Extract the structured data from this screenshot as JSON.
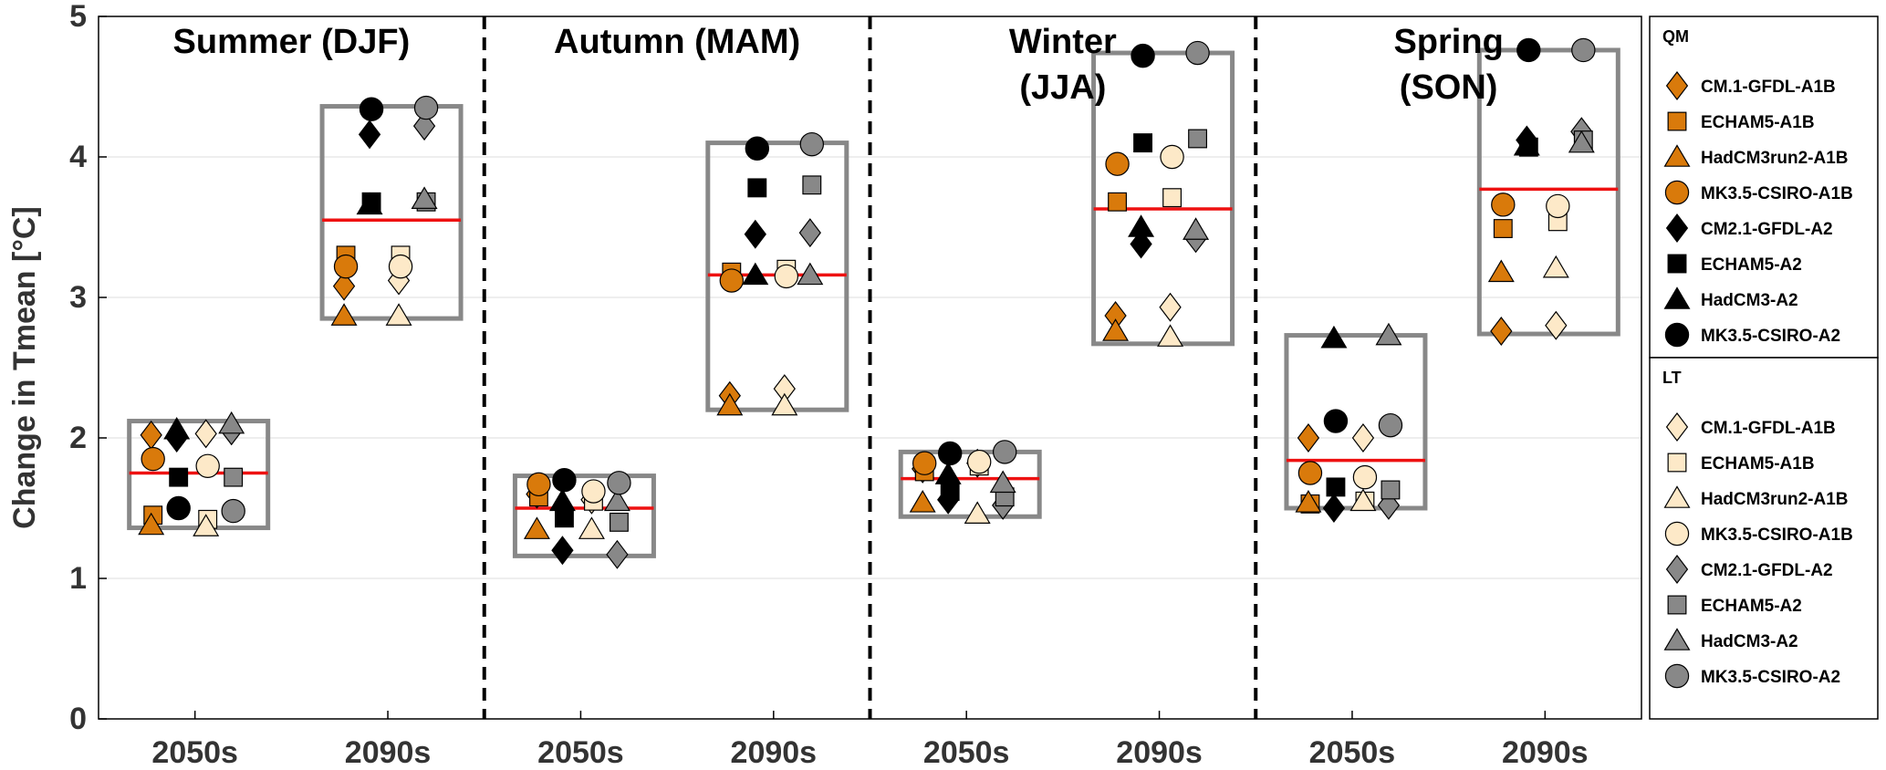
{
  "chart_data": {
    "type": "scatter",
    "ylabel": "Change in Tmean [°C]",
    "ylim": [
      0,
      5
    ],
    "yticks": [
      "0",
      "1",
      "2",
      "3",
      "4",
      "5"
    ],
    "grid": true,
    "legend_placement": "right",
    "seasons": [
      {
        "label_lines": [
          "Summer (DJF)"
        ]
      },
      {
        "label_lines": [
          "Autumn (MAM)"
        ]
      },
      {
        "label_lines": [
          "Winter",
          "(JJA)"
        ]
      },
      {
        "label_lines": [
          "Spring",
          "(SON)"
        ]
      }
    ],
    "periods": [
      "2050s",
      "2090s"
    ],
    "legend_groups": [
      {
        "title": "QM",
        "method": "QM",
        "entries": [
          {
            "label": "CM.1-GFDL-A1B",
            "key": "CM.1-GFDL-A1B"
          },
          {
            "label": "ECHAM5-A1B",
            "key": "ECHAM5-A1B"
          },
          {
            "label": "HadCM3run2-A1B",
            "key": "HadCM3run2-A1B"
          },
          {
            "label": "MK3.5-CSIRO-A1B",
            "key": "MK3.5-CSIRO-A1B"
          },
          {
            "label": "CM2.1-GFDL-A2",
            "key": "CM2.1-GFDL-A2"
          },
          {
            "label": "ECHAM5-A2",
            "key": "ECHAM5-A2"
          },
          {
            "label": "HadCM3-A2",
            "key": "HadCM3-A2"
          },
          {
            "label": "MK3.5-CSIRO-A2",
            "key": "MK3.5-CSIRO-A2"
          }
        ]
      },
      {
        "title": "LT",
        "method": "LT",
        "entries": [
          {
            "label": "CM.1-GFDL-A1B",
            "key": "CM.1-GFDL-A1B"
          },
          {
            "label": "ECHAM5-A1B",
            "key": "ECHAM5-A1B"
          },
          {
            "label": "HadCM3run2-A1B",
            "key": "HadCM3run2-A1B"
          },
          {
            "label": "MK3.5-CSIRO-A1B",
            "key": "MK3.5-CSIRO-A1B"
          },
          {
            "label": "CM2.1-GFDL-A2",
            "key": "CM2.1-GFDL-A2"
          },
          {
            "label": "ECHAM5-A2",
            "key": "ECHAM5-A2"
          },
          {
            "label": "HadCM3-A2",
            "key": "HadCM3-A2"
          },
          {
            "label": "MK3.5-CSIRO-A2",
            "key": "MK3.5-CSIRO-A2"
          }
        ]
      }
    ],
    "model_styles": {
      "CM.1-GFDL-A1B": {
        "marker": "diamond",
        "scenario": "A1B"
      },
      "ECHAM5-A1B": {
        "marker": "square",
        "scenario": "A1B"
      },
      "HadCM3run2-A1B": {
        "marker": "triangle",
        "scenario": "A1B"
      },
      "MK3.5-CSIRO-A1B": {
        "marker": "circle",
        "scenario": "A1B"
      },
      "CM2.1-GFDL-A2": {
        "marker": "diamond",
        "scenario": "A2"
      },
      "ECHAM5-A2": {
        "marker": "square",
        "scenario": "A2"
      },
      "HadCM3-A2": {
        "marker": "triangle",
        "scenario": "A2"
      },
      "MK3.5-CSIRO-A2": {
        "marker": "circle",
        "scenario": "A2"
      }
    },
    "colors": {
      "QM-A1B": "#d97a0b",
      "QM-A2": "#000000",
      "LT-A1B": "#fde9c8",
      "LT-A2": "#888888",
      "range_box": "#888888",
      "mean_line": "#ee1111",
      "grid": "#dddddd"
    },
    "groups": [
      {
        "season": "Summer (DJF)",
        "period": "2050s",
        "box": [
          1.36,
          2.12
        ],
        "mean": 1.75,
        "values": {
          "QM": {
            "CM.1-GFDL-A1B": 2.02,
            "ECHAM5-A1B": 1.45,
            "HadCM3run2-A1B": 1.38,
            "MK3.5-CSIRO-A1B": 1.85,
            "CM2.1-GFDL-A2": 2.0,
            "ECHAM5-A2": 1.72,
            "HadCM3-A2": 2.06,
            "MK3.5-CSIRO-A2": 1.5
          },
          "LT": {
            "CM.1-GFDL-A1B": 2.03,
            "ECHAM5-A1B": 1.42,
            "HadCM3run2-A1B": 1.37,
            "MK3.5-CSIRO-A1B": 1.8,
            "CM2.1-GFDL-A2": 2.05,
            "ECHAM5-A2": 1.72,
            "HadCM3-A2": 2.1,
            "MK3.5-CSIRO-A2": 1.48
          }
        }
      },
      {
        "season": "Summer (DJF)",
        "period": "2090s",
        "box": [
          2.85,
          4.36
        ],
        "mean": 3.55,
        "values": {
          "QM": {
            "CM.1-GFDL-A1B": 3.08,
            "ECHAM5-A1B": 3.3,
            "HadCM3run2-A1B": 2.87,
            "MK3.5-CSIRO-A1B": 3.22,
            "CM2.1-GFDL-A2": 4.16,
            "ECHAM5-A2": 3.68,
            "HadCM3-A2": 3.66,
            "MK3.5-CSIRO-A2": 4.34
          },
          "LT": {
            "CM.1-GFDL-A1B": 3.12,
            "ECHAM5-A1B": 3.3,
            "HadCM3run2-A1B": 2.87,
            "MK3.5-CSIRO-A1B": 3.22,
            "CM2.1-GFDL-A2": 4.22,
            "ECHAM5-A2": 3.68,
            "HadCM3-A2": 3.7,
            "MK3.5-CSIRO-A2": 4.35
          }
        }
      },
      {
        "season": "Autumn (MAM)",
        "period": "2050s",
        "box": [
          1.16,
          1.73
        ],
        "mean": 1.5,
        "values": {
          "QM": {
            "CM.1-GFDL-A1B": 1.6,
            "ECHAM5-A1B": 1.58,
            "HadCM3run2-A1B": 1.35,
            "MK3.5-CSIRO-A1B": 1.67,
            "CM2.1-GFDL-A2": 1.2,
            "ECHAM5-A2": 1.43,
            "HadCM3-A2": 1.55,
            "MK3.5-CSIRO-A2": 1.7
          },
          "LT": {
            "CM.1-GFDL-A1B": 1.56,
            "ECHAM5-A1B": 1.55,
            "HadCM3run2-A1B": 1.35,
            "MK3.5-CSIRO-A1B": 1.62,
            "CM2.1-GFDL-A2": 1.17,
            "ECHAM5-A2": 1.4,
            "HadCM3-A2": 1.55,
            "MK3.5-CSIRO-A2": 1.68
          }
        }
      },
      {
        "season": "Autumn (MAM)",
        "period": "2090s",
        "box": [
          2.2,
          4.1
        ],
        "mean": 3.16,
        "values": {
          "QM": {
            "CM.1-GFDL-A1B": 2.3,
            "ECHAM5-A1B": 3.18,
            "HadCM3run2-A1B": 2.23,
            "MK3.5-CSIRO-A1B": 3.12,
            "CM2.1-GFDL-A2": 3.45,
            "ECHAM5-A2": 3.78,
            "HadCM3-A2": 3.16,
            "MK3.5-CSIRO-A2": 4.06
          },
          "LT": {
            "CM.1-GFDL-A1B": 2.35,
            "ECHAM5-A1B": 3.2,
            "HadCM3run2-A1B": 2.23,
            "MK3.5-CSIRO-A1B": 3.15,
            "CM2.1-GFDL-A2": 3.46,
            "ECHAM5-A2": 3.8,
            "HadCM3-A2": 3.16,
            "MK3.5-CSIRO-A2": 4.09
          }
        }
      },
      {
        "season": "Winter (JJA)",
        "period": "2050s",
        "box": [
          1.44,
          1.9
        ],
        "mean": 1.71,
        "values": {
          "QM": {
            "CM.1-GFDL-A1B": 1.78,
            "ECHAM5-A1B": 1.76,
            "HadCM3run2-A1B": 1.54,
            "MK3.5-CSIRO-A1B": 1.82,
            "CM2.1-GFDL-A2": 1.56,
            "ECHAM5-A2": 1.62,
            "HadCM3-A2": 1.74,
            "MK3.5-CSIRO-A2": 1.89
          },
          "LT": {
            "CM.1-GFDL-A1B": 1.82,
            "ECHAM5-A1B": 1.8,
            "HadCM3run2-A1B": 1.46,
            "MK3.5-CSIRO-A1B": 1.83,
            "CM2.1-GFDL-A2": 1.52,
            "ECHAM5-A2": 1.58,
            "HadCM3-A2": 1.68,
            "MK3.5-CSIRO-A2": 1.9
          }
        }
      },
      {
        "season": "Winter (JJA)",
        "period": "2090s",
        "box": [
          2.67,
          4.74
        ],
        "mean": 3.63,
        "values": {
          "QM": {
            "CM.1-GFDL-A1B": 2.87,
            "ECHAM5-A1B": 3.68,
            "HadCM3run2-A1B": 2.76,
            "MK3.5-CSIRO-A1B": 3.95,
            "CM2.1-GFDL-A2": 3.38,
            "ECHAM5-A2": 4.1,
            "HadCM3-A2": 3.5,
            "MK3.5-CSIRO-A2": 4.72
          },
          "LT": {
            "CM.1-GFDL-A1B": 2.93,
            "ECHAM5-A1B": 3.71,
            "HadCM3run2-A1B": 2.72,
            "MK3.5-CSIRO-A1B": 4.0,
            "CM2.1-GFDL-A2": 3.42,
            "ECHAM5-A2": 4.13,
            "HadCM3-A2": 3.48,
            "MK3.5-CSIRO-A2": 4.74
          }
        }
      },
      {
        "season": "Spring (SON)",
        "period": "2050s",
        "box": [
          1.5,
          2.73
        ],
        "mean": 1.84,
        "values": {
          "QM": {
            "CM.1-GFDL-A1B": 2.0,
            "ECHAM5-A1B": 1.53,
            "HadCM3run2-A1B": 1.54,
            "MK3.5-CSIRO-A1B": 1.75,
            "CM2.1-GFDL-A2": 1.5,
            "ECHAM5-A2": 1.65,
            "HadCM3-A2": 2.71,
            "MK3.5-CSIRO-A2": 2.12
          },
          "LT": {
            "CM.1-GFDL-A1B": 2.0,
            "ECHAM5-A1B": 1.55,
            "HadCM3run2-A1B": 1.55,
            "MK3.5-CSIRO-A1B": 1.72,
            "CM2.1-GFDL-A2": 1.52,
            "ECHAM5-A2": 1.63,
            "HadCM3-A2": 2.73,
            "MK3.5-CSIRO-A2": 2.09
          }
        }
      },
      {
        "season": "Spring (SON)",
        "period": "2090s",
        "box": [
          2.74,
          4.76
        ],
        "mean": 3.77,
        "values": {
          "QM": {
            "CM.1-GFDL-A1B": 2.76,
            "ECHAM5-A1B": 3.49,
            "HadCM3run2-A1B": 3.18,
            "MK3.5-CSIRO-A1B": 3.66,
            "CM2.1-GFDL-A2": 4.12,
            "ECHAM5-A2": 4.07,
            "HadCM3-A2": 4.08,
            "MK3.5-CSIRO-A2": 4.76
          },
          "LT": {
            "CM.1-GFDL-A1B": 2.8,
            "ECHAM5-A1B": 3.54,
            "HadCM3run2-A1B": 3.21,
            "MK3.5-CSIRO-A1B": 3.65,
            "CM2.1-GFDL-A2": 4.18,
            "ECHAM5-A2": 4.12,
            "HadCM3-A2": 4.1,
            "MK3.5-CSIRO-A2": 4.76
          }
        }
      }
    ]
  }
}
